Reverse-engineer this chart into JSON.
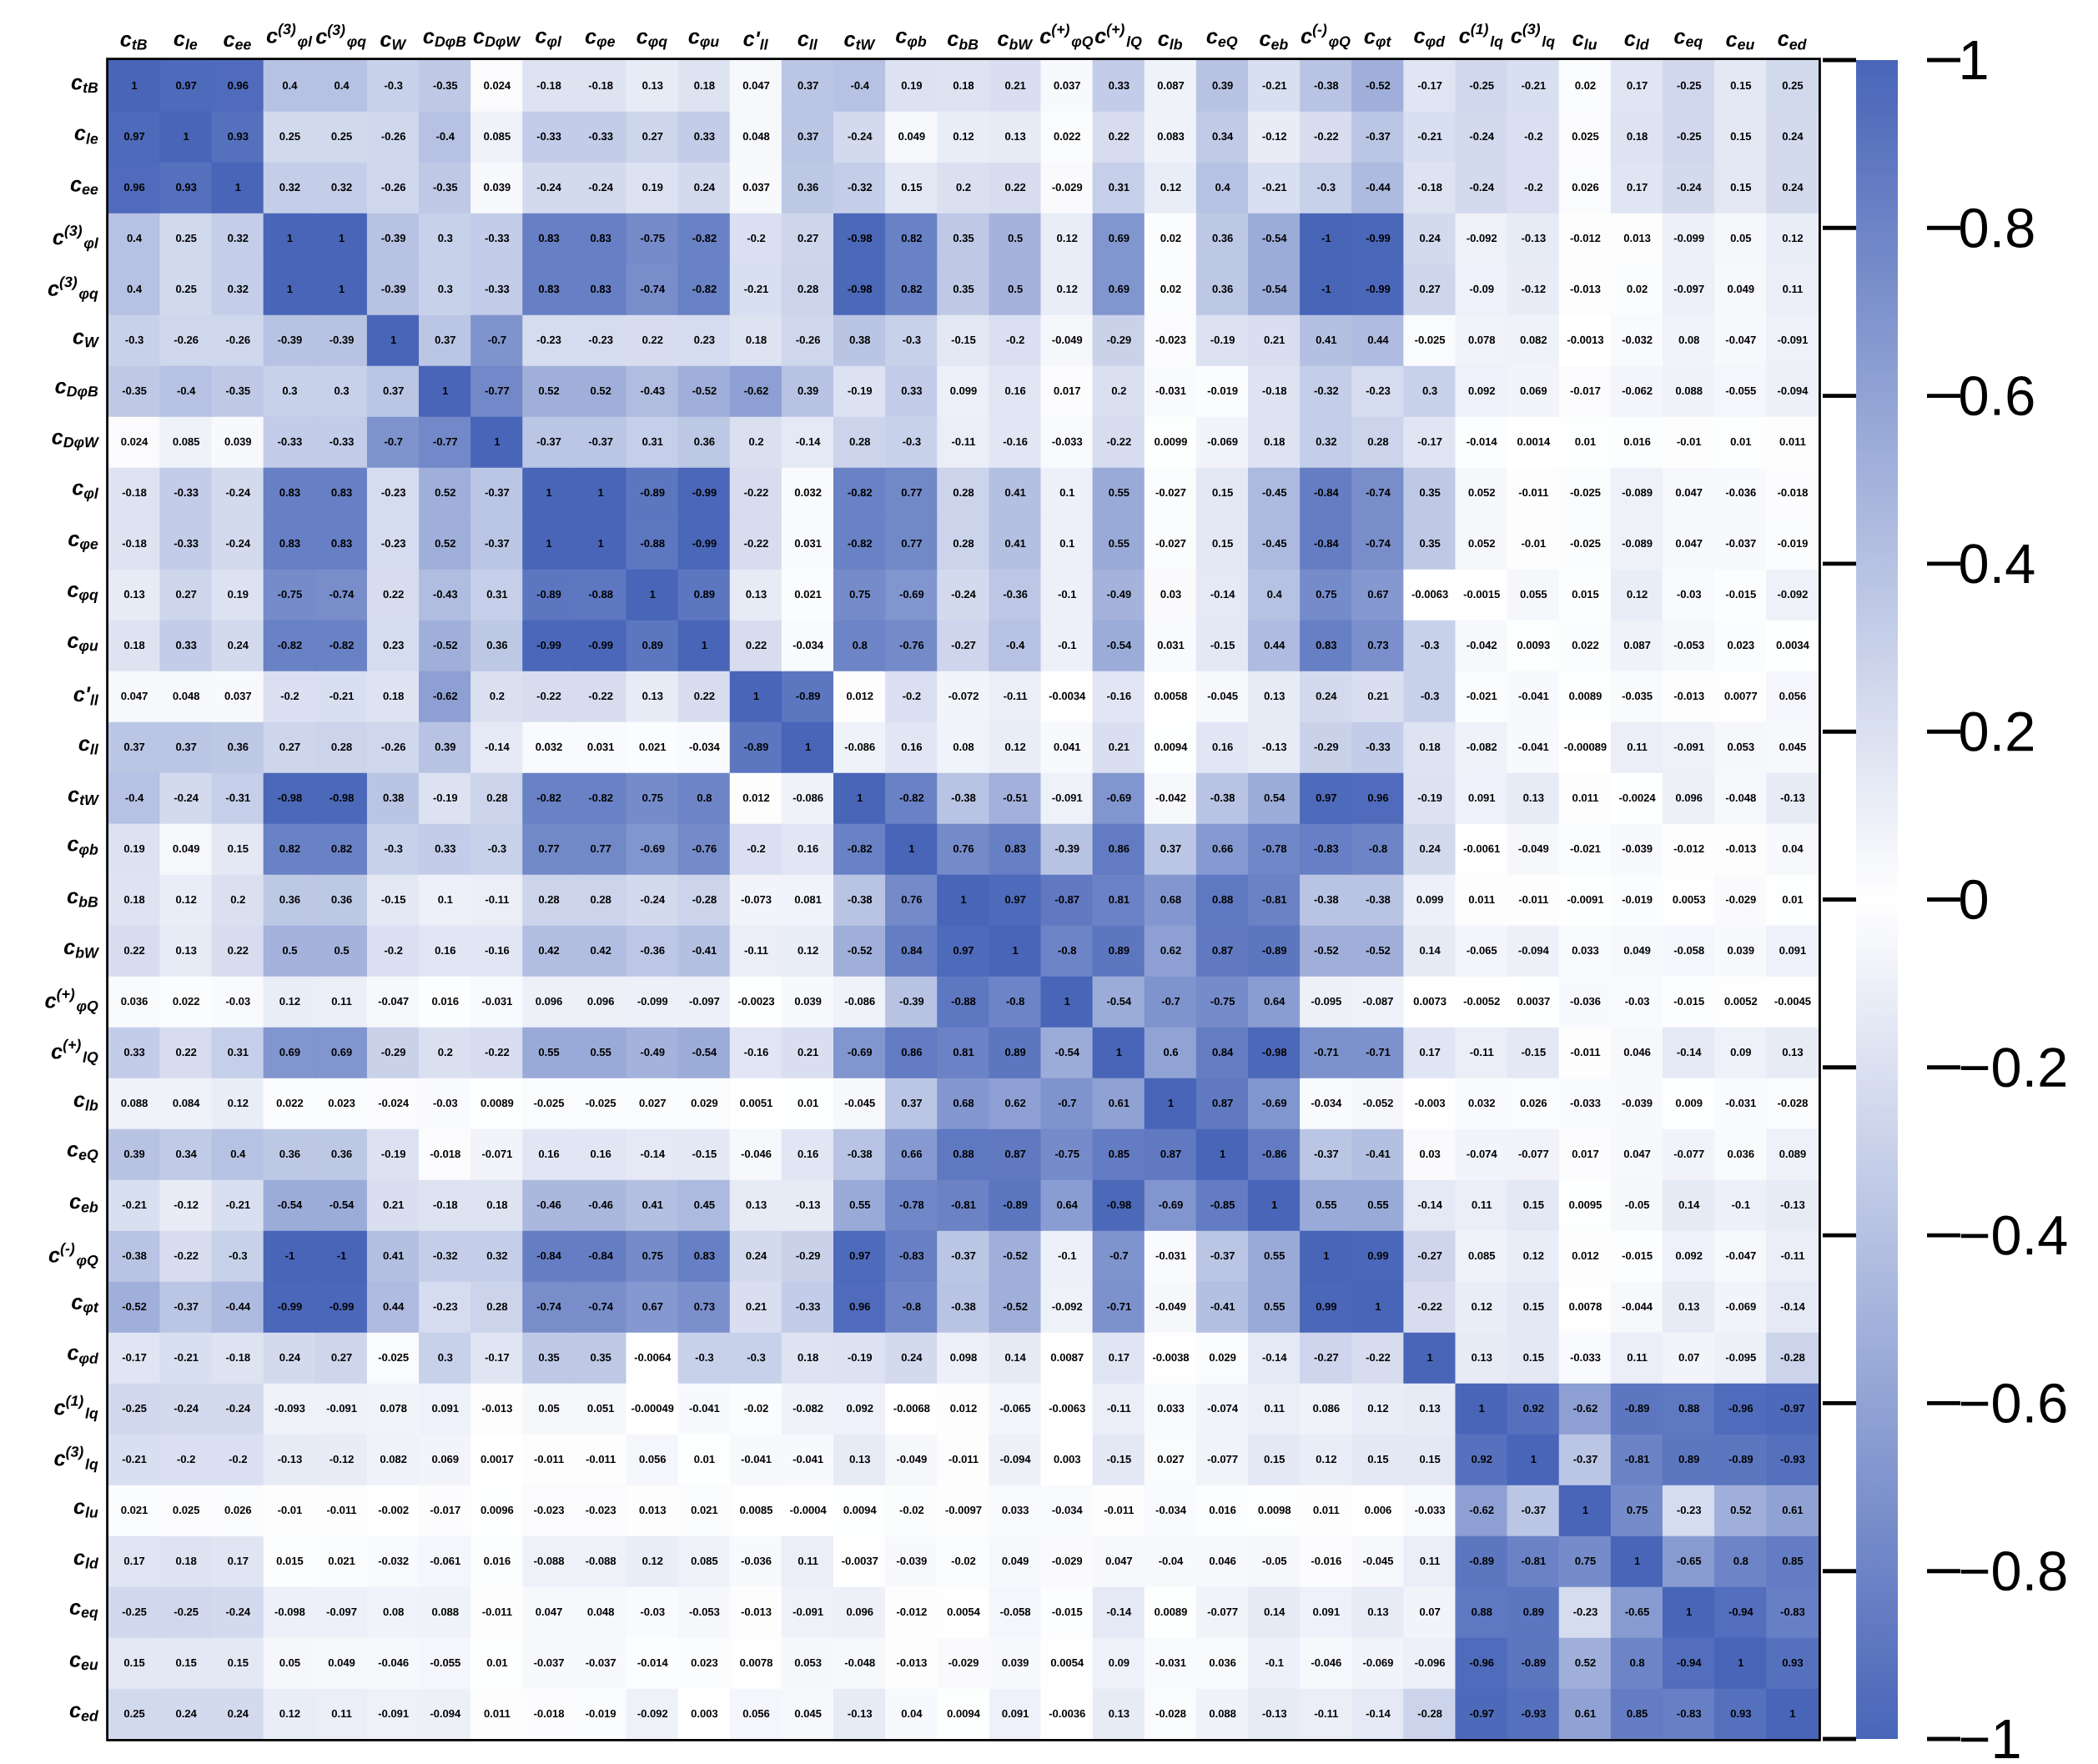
{
  "chart_data": {
    "type": "heatmap",
    "categories": [
      "c$_{tB}$",
      "c$_{le}$",
      "c$_{ee}$",
      "c$^{(3)}$$_{φl}$",
      "c$^{(3)}$$_{φq}$",
      "c$_{W}$",
      "c$_{DφB}$",
      "c$_{DφW}$",
      "c$_{φl}$",
      "c$_{φe}$",
      "c$_{φq}$",
      "c$_{φu}$",
      "c'$_{ll}$",
      "c$_{ll}$",
      "c$_{tW}$",
      "c$_{φb}$",
      "c$_{bB}$",
      "c$_{bW}$",
      "c$^{(+)}$$_{φQ}$",
      "c$^{(+)}$$_{lQ}$",
      "c$_{lb}$",
      "c$_{eQ}$",
      "c$_{eb}$",
      "c$^{(-)}$$_{φQ}$",
      "c$_{φt}$",
      "c$_{φd}$",
      "c$^{(1)}$$_{lq}$",
      "c$^{(3)}$$_{lq}$",
      "c$_{lu}$",
      "c$_{ld}$",
      "c$_{eq}$",
      "c$_{eu}$",
      "c$_{ed}$"
    ],
    "y_categories": [
      "c$_{tB}$",
      "c$_{le}$",
      "c$_{ee}$",
      "c$^{(3)}$$_{φl}$",
      "c$^{(3)}$$_{φq}$",
      "c$_{W}$",
      "c$_{DφB}$",
      "c$_{DφW}$",
      "c$_{φl}$",
      "c$_{φe}$",
      "c$_{φq}$",
      "c$_{φu}$",
      "c'$_{ll}$",
      "c$_{ll}$",
      "c$_{tW}$",
      "c$_{φb}$",
      "c$_{bB}$",
      "c$_{bW}$",
      "c$^{(+)}$$_{φQ}$",
      "c$^{(+)}$$_{lQ}$",
      "c$_{lb}$",
      "c$_{eQ}$",
      "c$_{eb}$",
      "c$^{(-)}$$_{φQ}$",
      "c$_{φt}$",
      "c$_{φd}$",
      "c$^{(1)}$$_{lq}$",
      "c$^{(3)}$$_{lq}$",
      "c$_{lu}$",
      "c$_{ld}$",
      "c$_{eq}$",
      "c$_{eu}$",
      "c$_{ed}$"
    ],
    "cells": [
      [
        1,
        0.97,
        0.96,
        0.4,
        0.4,
        -0.3,
        -0.35,
        0.024,
        -0.18,
        -0.18,
        0.13,
        0.18,
        0.047,
        0.37,
        -0.4,
        0.19,
        0.18,
        0.21,
        0.037,
        0.33,
        0.087,
        0.39,
        -0.21,
        -0.38,
        -0.52,
        -0.17,
        -0.25,
        -0.21,
        0.02,
        0.17,
        -0.25,
        0.15,
        0.25
      ],
      [
        0.97,
        1,
        0.93,
        0.25,
        0.25,
        -0.26,
        -0.4,
        0.085,
        -0.33,
        -0.33,
        0.27,
        0.33,
        0.048,
        0.37,
        -0.24,
        0.049,
        0.12,
        0.13,
        0.022,
        0.22,
        0.083,
        0.34,
        -0.12,
        -0.22,
        -0.37,
        -0.21,
        -0.24,
        -0.2,
        0.025,
        0.18,
        -0.25,
        0.15,
        0.24
      ],
      [
        0.96,
        0.93,
        1,
        0.32,
        0.32,
        -0.26,
        -0.35,
        0.039,
        -0.24,
        -0.24,
        0.19,
        0.24,
        0.037,
        0.36,
        -0.32,
        0.15,
        0.2,
        0.22,
        -0.029,
        0.31,
        0.12,
        0.4,
        -0.21,
        -0.3,
        -0.44,
        -0.18,
        -0.24,
        -0.2,
        0.026,
        0.17,
        -0.24,
        0.15,
        0.24
      ],
      [
        0.4,
        0.25,
        0.32,
        1,
        1,
        -0.39,
        0.3,
        -0.33,
        0.83,
        0.83,
        -0.75,
        -0.82,
        -0.2,
        0.27,
        -0.98,
        0.82,
        0.35,
        0.5,
        0.12,
        0.69,
        0.02,
        0.36,
        -0.54,
        -1,
        -0.99,
        0.24,
        -0.092,
        -0.13,
        -0.012,
        0.013,
        -0.099,
        0.05,
        0.12
      ],
      [
        0.4,
        0.25,
        0.32,
        1,
        1,
        -0.39,
        0.3,
        -0.33,
        0.83,
        0.83,
        -0.74,
        -0.82,
        -0.21,
        0.28,
        -0.98,
        0.82,
        0.35,
        0.5,
        0.12,
        0.69,
        0.02,
        0.36,
        -0.54,
        -1,
        -0.99,
        0.27,
        -0.09,
        -0.12,
        -0.013,
        0.02,
        -0.097,
        0.049,
        0.11
      ],
      [
        -0.3,
        -0.26,
        -0.26,
        -0.39,
        -0.39,
        1,
        0.37,
        -0.7,
        -0.23,
        -0.23,
        0.22,
        0.23,
        0.18,
        -0.26,
        0.38,
        -0.3,
        -0.15,
        -0.2,
        -0.049,
        -0.29,
        -0.023,
        -0.19,
        0.21,
        0.41,
        0.44,
        -0.025,
        0.078,
        0.082,
        -0.0013,
        -0.032,
        0.08,
        -0.047,
        -0.091
      ],
      [
        -0.35,
        -0.4,
        -0.35,
        0.3,
        0.3,
        0.37,
        1,
        -0.77,
        0.52,
        0.52,
        -0.43,
        -0.52,
        -0.62,
        0.39,
        -0.19,
        0.33,
        0.099,
        0.16,
        0.017,
        0.2,
        -0.031,
        -0.019,
        -0.18,
        -0.32,
        -0.23,
        0.3,
        0.092,
        0.069,
        -0.017,
        -0.062,
        0.088,
        -0.055,
        -0.094
      ],
      [
        0.024,
        0.085,
        0.039,
        -0.33,
        -0.33,
        -0.7,
        -0.77,
        1,
        -0.37,
        -0.37,
        0.31,
        0.36,
        0.2,
        -0.14,
        0.28,
        -0.3,
        -0.11,
        -0.16,
        -0.033,
        -0.22,
        0.0099,
        -0.069,
        0.18,
        0.32,
        0.28,
        -0.17,
        -0.014,
        0.0014,
        0.01,
        0.016,
        -0.01,
        0.01,
        0.011
      ],
      [
        -0.18,
        -0.33,
        -0.24,
        0.83,
        0.83,
        -0.23,
        0.52,
        -0.37,
        1,
        1,
        -0.89,
        -0.99,
        -0.22,
        0.032,
        -0.82,
        0.77,
        0.28,
        0.41,
        0.1,
        0.55,
        -0.027,
        0.15,
        -0.45,
        -0.84,
        -0.74,
        0.35,
        0.052,
        -0.011,
        -0.025,
        -0.089,
        0.047,
        -0.036,
        -0.018
      ],
      [
        -0.18,
        -0.33,
        -0.24,
        0.83,
        0.83,
        -0.23,
        0.52,
        -0.37,
        1,
        1,
        -0.88,
        -0.99,
        -0.22,
        0.031,
        -0.82,
        0.77,
        0.28,
        0.41,
        0.1,
        0.55,
        -0.027,
        0.15,
        -0.45,
        -0.84,
        -0.74,
        0.35,
        0.052,
        -0.01,
        -0.025,
        -0.089,
        0.047,
        -0.037,
        -0.019
      ],
      [
        0.13,
        0.27,
        0.19,
        -0.75,
        -0.74,
        0.22,
        -0.43,
        0.31,
        -0.89,
        -0.88,
        1,
        0.89,
        0.13,
        0.021,
        0.75,
        -0.69,
        -0.24,
        -0.36,
        -0.1,
        -0.49,
        0.03,
        -0.14,
        0.4,
        0.75,
        0.67,
        -0.0063,
        -0.0015,
        0.055,
        0.015,
        0.12,
        -0.03,
        -0.015,
        -0.092
      ],
      [
        0.18,
        0.33,
        0.24,
        -0.82,
        -0.82,
        0.23,
        -0.52,
        0.36,
        -0.99,
        -0.99,
        0.89,
        1,
        0.22,
        -0.034,
        0.8,
        -0.76,
        -0.27,
        -0.4,
        -0.1,
        -0.54,
        0.031,
        -0.15,
        0.44,
        0.83,
        0.73,
        -0.3,
        -0.042,
        0.0093,
        0.022,
        0.087,
        -0.053,
        0.023,
        0.0034
      ],
      [
        0.047,
        0.048,
        0.037,
        -0.2,
        -0.21,
        0.18,
        -0.62,
        0.2,
        -0.22,
        -0.22,
        0.13,
        0.22,
        1,
        -0.89,
        0.012,
        -0.2,
        -0.072,
        -0.11,
        -0.0034,
        -0.16,
        0.0058,
        -0.045,
        0.13,
        0.24,
        0.21,
        -0.3,
        -0.021,
        -0.041,
        0.0089,
        -0.035,
        -0.013,
        0.0077,
        0.056
      ],
      [
        0.37,
        0.37,
        0.36,
        0.27,
        0.28,
        -0.26,
        0.39,
        -0.14,
        0.032,
        0.031,
        0.021,
        -0.034,
        -0.89,
        1,
        -0.086,
        0.16,
        0.08,
        0.12,
        0.041,
        0.21,
        0.0094,
        0.16,
        -0.13,
        -0.29,
        -0.33,
        0.18,
        -0.082,
        -0.041,
        -0.00089,
        0.11,
        -0.091,
        0.053,
        0.045
      ],
      [
        -0.4,
        -0.24,
        -0.31,
        -0.98,
        -0.98,
        0.38,
        -0.19,
        0.28,
        -0.82,
        -0.82,
        0.75,
        0.8,
        0.012,
        -0.086,
        1,
        -0.82,
        -0.38,
        -0.51,
        -0.091,
        -0.69,
        -0.042,
        -0.38,
        0.54,
        0.97,
        0.96,
        -0.19,
        0.091,
        0.13,
        0.011,
        -0.0024,
        0.096,
        -0.048,
        -0.13
      ],
      [
        0.19,
        0.049,
        0.15,
        0.82,
        0.82,
        -0.3,
        0.33,
        -0.3,
        0.77,
        0.77,
        -0.69,
        -0.76,
        -0.2,
        0.16,
        -0.82,
        1,
        0.76,
        0.83,
        -0.39,
        0.86,
        0.37,
        0.66,
        -0.78,
        -0.83,
        -0.8,
        0.24,
        -0.0061,
        -0.049,
        -0.021,
        -0.039,
        -0.012,
        -0.013,
        0.04
      ],
      [
        0.18,
        0.12,
        0.2,
        0.36,
        0.36,
        -0.15,
        0.1,
        -0.11,
        0.28,
        0.28,
        -0.24,
        -0.28,
        -0.073,
        0.081,
        -0.38,
        0.76,
        1,
        0.97,
        -0.87,
        0.81,
        0.68,
        0.88,
        -0.81,
        -0.38,
        -0.38,
        0.099,
        0.011,
        -0.011,
        -0.0091,
        -0.019,
        0.0053,
        -0.029,
        0.01
      ],
      [
        0.22,
        0.13,
        0.22,
        0.5,
        0.5,
        -0.2,
        0.16,
        -0.16,
        0.42,
        0.42,
        -0.36,
        -0.41,
        -0.11,
        0.12,
        -0.52,
        0.84,
        0.97,
        1,
        -0.8,
        0.89,
        0.62,
        0.87,
        -0.89,
        -0.52,
        -0.52,
        0.14,
        -0.065,
        -0.094,
        0.033,
        0.049,
        -0.058,
        0.039,
        0.091
      ],
      [
        0.036,
        0.022,
        -0.03,
        0.12,
        0.11,
        -0.047,
        0.016,
        -0.031,
        0.096,
        0.096,
        -0.099,
        -0.097,
        -0.0023,
        0.039,
        -0.086,
        -0.39,
        -0.88,
        -0.8,
        1,
        -0.54,
        -0.7,
        -0.75,
        0.64,
        -0.095,
        -0.087,
        0.0073,
        -0.0052,
        0.0037,
        -0.036,
        -0.03,
        -0.015,
        0.0052,
        -0.0045
      ],
      [
        0.33,
        0.22,
        0.31,
        0.69,
        0.69,
        -0.29,
        0.2,
        -0.22,
        0.55,
        0.55,
        -0.49,
        -0.54,
        -0.16,
        0.21,
        -0.69,
        0.86,
        0.81,
        0.89,
        -0.54,
        1,
        0.6,
        0.84,
        -0.98,
        -0.71,
        -0.71,
        0.17,
        -0.11,
        -0.15,
        -0.011,
        0.046,
        -0.14,
        0.09,
        0.13
      ],
      [
        0.088,
        0.084,
        0.12,
        0.022,
        0.023,
        -0.024,
        -0.03,
        0.0089,
        -0.025,
        -0.025,
        0.027,
        0.029,
        0.0051,
        0.01,
        -0.045,
        0.37,
        0.68,
        0.62,
        -0.7,
        0.61,
        1,
        0.87,
        -0.69,
        -0.034,
        -0.052,
        -0.003,
        0.032,
        0.026,
        -0.033,
        -0.039,
        0.009,
        -0.031,
        -0.028
      ],
      [
        0.39,
        0.34,
        0.4,
        0.36,
        0.36,
        -0.19,
        -0.018,
        -0.071,
        0.16,
        0.16,
        -0.14,
        -0.15,
        -0.046,
        0.16,
        -0.38,
        0.66,
        0.88,
        0.87,
        -0.75,
        0.85,
        0.87,
        1,
        -0.86,
        -0.37,
        -0.41,
        0.03,
        -0.074,
        -0.077,
        0.017,
        0.047,
        -0.077,
        0.036,
        0.089
      ],
      [
        -0.21,
        -0.12,
        -0.21,
        -0.54,
        -0.54,
        0.21,
        -0.18,
        0.18,
        -0.46,
        -0.46,
        0.41,
        0.45,
        0.13,
        -0.13,
        0.55,
        -0.78,
        -0.81,
        -0.89,
        0.64,
        -0.98,
        -0.69,
        -0.85,
        1,
        0.55,
        0.55,
        -0.14,
        0.11,
        0.15,
        0.0095,
        -0.05,
        0.14,
        -0.1,
        -0.13
      ],
      [
        -0.38,
        -0.22,
        -0.3,
        -1,
        -1,
        0.41,
        -0.32,
        0.32,
        -0.84,
        -0.84,
        0.75,
        0.83,
        0.24,
        -0.29,
        0.97,
        -0.83,
        -0.37,
        -0.52,
        -0.1,
        -0.7,
        -0.031,
        -0.37,
        0.55,
        1,
        0.99,
        -0.27,
        0.085,
        0.12,
        0.012,
        -0.015,
        0.092,
        -0.047,
        -0.11
      ],
      [
        -0.52,
        -0.37,
        -0.44,
        -0.99,
        -0.99,
        0.44,
        -0.23,
        0.28,
        -0.74,
        -0.74,
        0.67,
        0.73,
        0.21,
        -0.33,
        0.96,
        -0.8,
        -0.38,
        -0.52,
        -0.092,
        -0.71,
        -0.049,
        -0.41,
        0.55,
        0.99,
        1,
        -0.22,
        0.12,
        0.15,
        0.0078,
        -0.044,
        0.13,
        -0.069,
        -0.14
      ],
      [
        -0.17,
        -0.21,
        -0.18,
        0.24,
        0.27,
        -0.025,
        0.3,
        -0.17,
        0.35,
        0.35,
        -0.0064,
        -0.3,
        -0.3,
        0.18,
        -0.19,
        0.24,
        0.098,
        0.14,
        0.0087,
        0.17,
        -0.0038,
        0.029,
        -0.14,
        -0.27,
        -0.22,
        1,
        0.13,
        0.15,
        -0.033,
        0.11,
        0.07,
        -0.095,
        -0.28
      ],
      [
        -0.25,
        -0.24,
        -0.24,
        -0.093,
        -0.091,
        0.078,
        0.091,
        -0.013,
        0.05,
        0.051,
        -0.00049,
        -0.041,
        -0.02,
        -0.082,
        0.092,
        -0.0068,
        0.012,
        -0.065,
        -0.0063,
        -0.11,
        0.033,
        -0.074,
        0.11,
        0.086,
        0.12,
        0.13,
        1,
        0.92,
        -0.62,
        -0.89,
        0.88,
        -0.96,
        -0.97
      ],
      [
        -0.21,
        -0.2,
        -0.2,
        -0.13,
        -0.12,
        0.082,
        0.069,
        0.0017,
        -0.011,
        -0.011,
        0.056,
        0.01,
        -0.041,
        -0.041,
        0.13,
        -0.049,
        -0.011,
        -0.094,
        0.003,
        -0.15,
        0.027,
        -0.077,
        0.15,
        0.12,
        0.15,
        0.15,
        0.92,
        1,
        -0.37,
        -0.81,
        0.89,
        -0.89,
        -0.93
      ],
      [
        0.021,
        0.025,
        0.026,
        -0.01,
        -0.011,
        -0.002,
        -0.017,
        0.0096,
        -0.023,
        -0.023,
        0.013,
        0.021,
        0.0085,
        -0.0004,
        0.0094,
        -0.02,
        -0.0097,
        0.033,
        -0.034,
        -0.011,
        -0.034,
        0.016,
        0.0098,
        0.011,
        0.006,
        -0.033,
        -0.62,
        -0.37,
        1,
        0.75,
        -0.23,
        0.52,
        0.61
      ],
      [
        0.17,
        0.18,
        0.17,
        0.015,
        0.021,
        -0.032,
        -0.061,
        0.016,
        -0.088,
        -0.088,
        0.12,
        0.085,
        -0.036,
        0.11,
        -0.0037,
        -0.039,
        -0.02,
        0.049,
        -0.029,
        0.047,
        -0.04,
        0.046,
        -0.05,
        -0.016,
        -0.045,
        0.11,
        -0.89,
        -0.81,
        0.75,
        1,
        -0.65,
        0.8,
        0.85
      ],
      [
        -0.25,
        -0.25,
        -0.24,
        -0.098,
        -0.097,
        0.08,
        0.088,
        -0.011,
        0.047,
        0.048,
        -0.03,
        -0.053,
        -0.013,
        -0.091,
        0.096,
        -0.012,
        0.0054,
        -0.058,
        -0.015,
        -0.14,
        0.0089,
        -0.077,
        0.14,
        0.091,
        0.13,
        0.07,
        0.88,
        0.89,
        -0.23,
        -0.65,
        1,
        -0.94,
        -0.83
      ],
      [
        0.15,
        0.15,
        0.15,
        0.05,
        0.049,
        -0.046,
        -0.055,
        0.01,
        -0.037,
        -0.037,
        -0.014,
        0.023,
        0.0078,
        0.053,
        -0.048,
        -0.013,
        -0.029,
        0.039,
        0.0054,
        0.09,
        -0.031,
        0.036,
        -0.1,
        -0.046,
        -0.069,
        -0.096,
        -0.96,
        -0.89,
        0.52,
        0.8,
        -0.94,
        1,
        0.93
      ],
      [
        0.25,
        0.24,
        0.24,
        0.12,
        0.11,
        -0.091,
        -0.094,
        0.011,
        -0.018,
        -0.019,
        -0.092,
        0.003,
        0.056,
        0.045,
        -0.13,
        0.04,
        0.0094,
        0.091,
        -0.0036,
        0.13,
        -0.028,
        0.088,
        -0.13,
        -0.11,
        -0.14,
        -0.28,
        -0.97,
        -0.93,
        0.61,
        0.85,
        -0.83,
        0.93,
        1
      ]
    ],
    "data_labels": true,
    "clim": [
      -1,
      1
    ],
    "cticks": [
      {
        "value": -1,
        "label": "−1"
      },
      {
        "value": -0.8,
        "label": "−0.8"
      },
      {
        "value": -0.6,
        "label": "−0.6"
      },
      {
        "value": -0.4,
        "label": "−0.4"
      },
      {
        "value": -0.2,
        "label": "−0.2"
      },
      0,
      0.2,
      0.4,
      0.6,
      0.8,
      1
    ]
  }
}
